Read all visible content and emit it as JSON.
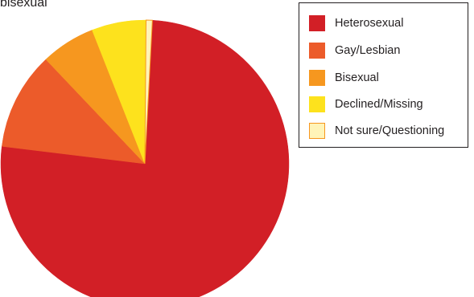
{
  "title_fragment": "bisexual",
  "chart_data": {
    "type": "pie",
    "title": "bisexual",
    "categories": [
      "Heterosexual",
      "Gay/Lesbian",
      "Bisexual",
      "Declined/Missing",
      "Not sure/Questioning"
    ],
    "values": [
      76.1,
      11.0,
      6.1,
      6.1,
      0.7
    ],
    "unit": "%",
    "start_angle_deg": -87,
    "direction": "clockwise",
    "colors": [
      "#d21f26",
      "#ec5b2a",
      "#f6971f",
      "#fde21d",
      "#fff4b8"
    ],
    "slice_borders": [
      "none",
      "none",
      "none",
      "none",
      "#f6971f"
    ],
    "legend_placement": "right",
    "grid": false
  },
  "legend": {
    "items": [
      {
        "label": "Heterosexual",
        "color": "#d21f26"
      },
      {
        "label": "Gay/Lesbian",
        "color": "#ec5b2a"
      },
      {
        "label": "Bisexual",
        "color": "#f6971f"
      },
      {
        "label": "Declined/Missing",
        "color": "#fde21d"
      },
      {
        "label": "Not sure/Questioning",
        "color": "#fff4b8",
        "border": "#f6971f"
      }
    ]
  }
}
